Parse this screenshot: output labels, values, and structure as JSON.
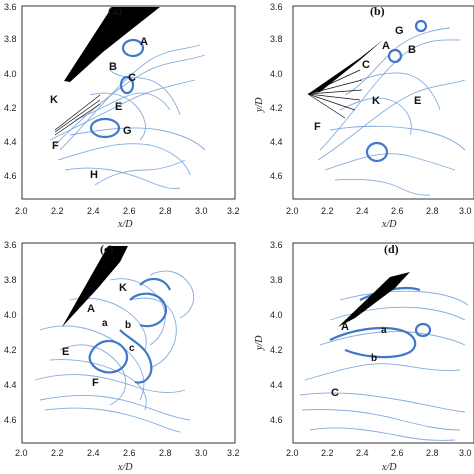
{
  "panels": [
    {
      "id": "a",
      "label": "(a)",
      "xticks": [
        "2.0",
        "2.2",
        "2.4",
        "2.6",
        "2.8",
        "3.0",
        "3.2"
      ],
      "yticks": [
        "3.6",
        "3.8",
        "4.0",
        "4.2",
        "4.4",
        "4.6"
      ],
      "xlabel": "x/D",
      "ylabel": "",
      "vortices": [
        "A",
        "B",
        "C",
        "K",
        "E",
        "G",
        "F",
        "H"
      ]
    },
    {
      "id": "b",
      "label": "(b)",
      "xticks": [
        "2.0",
        "2.2",
        "2.4",
        "2.6",
        "2.8",
        "3.0"
      ],
      "yticks": [
        "3.6",
        "3.8",
        "4.0",
        "4.2",
        "4.4",
        "4.6"
      ],
      "xlabel": "x/D",
      "ylabel": "y/D",
      "vortices": [
        "G",
        "A",
        "B",
        "C",
        "K",
        "E",
        "F"
      ]
    },
    {
      "id": "c",
      "label": "(c)",
      "xticks": [
        "2.0",
        "2.2",
        "2.4",
        "2.6",
        "2.8",
        "3.0",
        "3.2"
      ],
      "yticks": [
        "3.6",
        "3.8",
        "4.0",
        "4.2",
        "4.4",
        "4.6"
      ],
      "xlabel": "x/D",
      "ylabel": "",
      "vortices": [
        "K",
        "A",
        "a",
        "b",
        "E",
        "c",
        "F"
      ]
    },
    {
      "id": "d",
      "label": "(d)",
      "xticks": [
        "2.0",
        "2.2",
        "2.4",
        "2.6",
        "2.8",
        "3.0"
      ],
      "yticks": [
        "3.6",
        "3.8",
        "4.0",
        "4.2",
        "4.4",
        "4.6"
      ],
      "xlabel": "x/D",
      "ylabel": "y/D",
      "vortices": [
        "A",
        "a",
        "b",
        "C"
      ]
    }
  ]
}
